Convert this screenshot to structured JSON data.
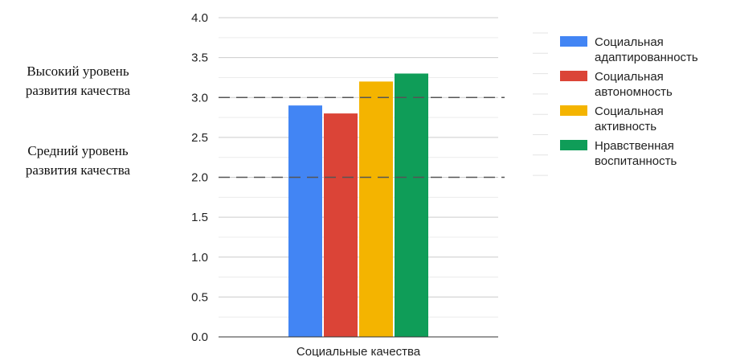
{
  "chart_data": {
    "type": "bar",
    "categories": [
      "Социальные качества"
    ],
    "series": [
      {
        "name": "Социальная адаптированность",
        "values": [
          2.9
        ],
        "color": "#4285f4"
      },
      {
        "name": "Социальная автономность",
        "values": [
          2.8
        ],
        "color": "#db4437"
      },
      {
        "name": "Социальная активность",
        "values": [
          3.2
        ],
        "color": "#f4b400"
      },
      {
        "name": "Нравственная воспитанность",
        "values": [
          3.3
        ],
        "color": "#0f9d58"
      }
    ],
    "xlabel": "",
    "ylabel": "",
    "ylim": [
      0,
      4
    ],
    "yticks": [
      "0.0",
      "0.5",
      "1.0",
      "1.5",
      "2.0",
      "2.5",
      "3.0",
      "3.5",
      "4.0"
    ],
    "grid": true,
    "legend_position": "right",
    "reference_lines": [
      {
        "value": 3.0,
        "label": [
          "Высокий уровень",
          "развития качества"
        ]
      },
      {
        "value": 2.0,
        "label": [
          "Средний уровень",
          "развития качества"
        ]
      }
    ]
  }
}
